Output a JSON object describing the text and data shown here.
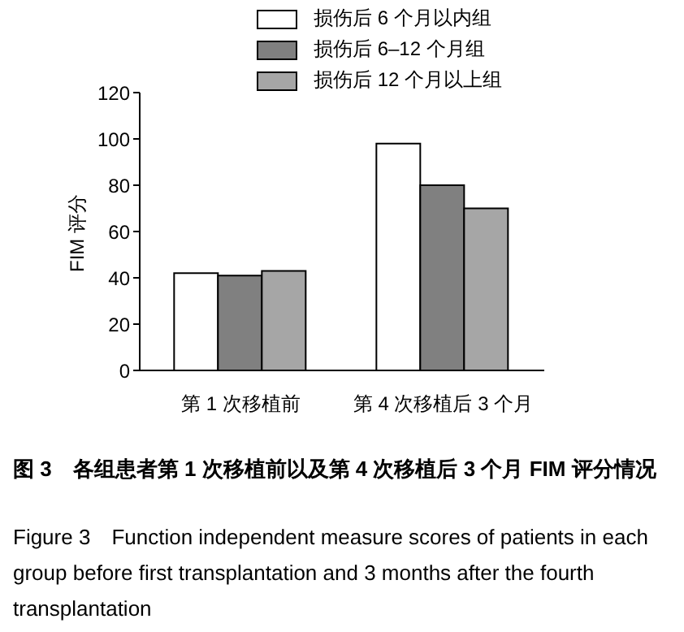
{
  "chart_data": {
    "type": "bar",
    "title": "图 3　各组患者第 1 次移植前以及第 4 次移植后 3 个月 FIM 评分情况",
    "subtitle": "Figure 3　Function independent measure scores of patients in each group before first transplantation and 3 months after the fourth transplantation",
    "ylabel": "FIM 评分",
    "categories": [
      "第 1 次移植前",
      "第 4 次移植后 3 个月"
    ],
    "series": [
      {
        "name": "损伤后 6 个月以内组",
        "color": "#ffffff",
        "values": [
          42,
          98
        ]
      },
      {
        "name": "损伤后 6–12 个月组",
        "color": "#808080",
        "values": [
          41,
          80
        ]
      },
      {
        "name": "损伤后 12 个月以上组",
        "color": "#a6a6a6",
        "values": [
          43,
          70
        ]
      }
    ],
    "ylim": [
      0,
      120
    ],
    "yticks": [
      0,
      20,
      40,
      60,
      80,
      100,
      120
    ],
    "grid": false,
    "legend": "top"
  }
}
